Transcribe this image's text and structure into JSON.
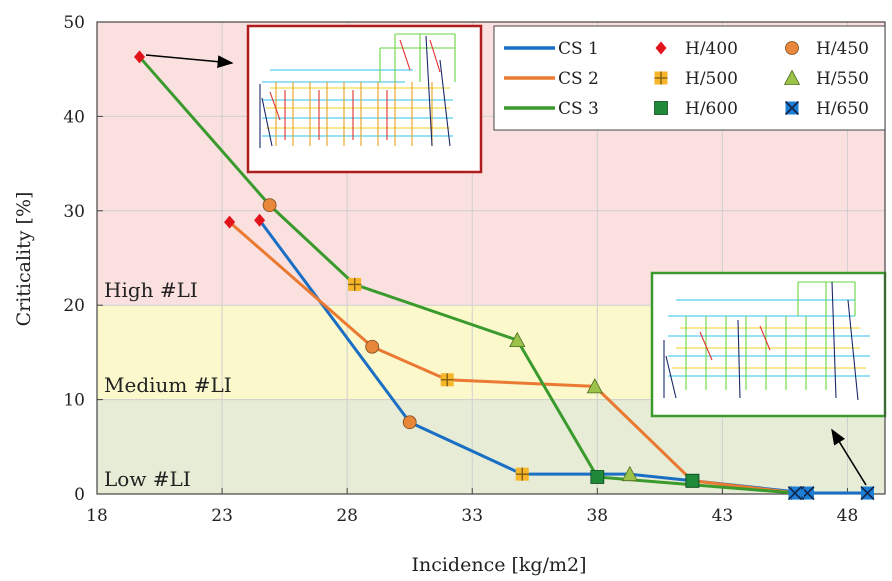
{
  "chart_data": {
    "type": "line",
    "title": "",
    "xlabel": "Incidence [kg/m2]",
    "ylabel": "Criticality [%]",
    "xlim": [
      18,
      49.5
    ],
    "ylim": [
      0,
      50
    ],
    "x_ticks": [
      "18",
      "23",
      "28",
      "33",
      "38",
      "43",
      "48"
    ],
    "y_ticks": [
      "0",
      "10",
      "20",
      "30",
      "40",
      "50"
    ],
    "grid": true,
    "legend_position": "top-right",
    "zones": [
      {
        "label": "Low #LI",
        "from": 0,
        "to": 10,
        "color": "#e6ecd6"
      },
      {
        "label": "Medium #LI",
        "from": 10,
        "to": 20,
        "color": "#fbf8cc"
      },
      {
        "label": "High #LI",
        "from": 20,
        "to": 50,
        "color": "#fbe0e0"
      }
    ],
    "series": [
      {
        "name": "CS 1",
        "color": "#1a6fc4",
        "points": [
          {
            "x": 24.5,
            "y": 29.0,
            "marker": "H/400"
          },
          {
            "x": 30.5,
            "y": 7.6,
            "marker": "H/450"
          },
          {
            "x": 35.0,
            "y": 2.1,
            "marker": "H/500"
          },
          {
            "x": 39.3,
            "y": 2.1,
            "marker": "H/550"
          },
          {
            "x": 41.8,
            "y": 1.4,
            "marker": "H/600"
          },
          {
            "x": 46.4,
            "y": 0.1,
            "marker": "H/650"
          },
          {
            "x": 48.8,
            "y": 0.1,
            "marker": "H/650"
          }
        ]
      },
      {
        "name": "CS 2",
        "color": "#ea7a32",
        "points": [
          {
            "x": 23.3,
            "y": 28.8,
            "marker": "H/400"
          },
          {
            "x": 29.0,
            "y": 15.6,
            "marker": "H/450"
          },
          {
            "x": 32.0,
            "y": 12.1,
            "marker": "H/500"
          },
          {
            "x": 37.9,
            "y": 11.4,
            "marker": "H/550"
          },
          {
            "x": 41.8,
            "y": 1.4,
            "marker": "H/600"
          },
          {
            "x": 46.0,
            "y": 0.1,
            "marker": "H/650"
          }
        ]
      },
      {
        "name": "CS 3",
        "color": "#3a9a2c",
        "points": [
          {
            "x": 19.7,
            "y": 46.3,
            "marker": "H/400"
          },
          {
            "x": 24.9,
            "y": 30.6,
            "marker": "H/450"
          },
          {
            "x": 28.3,
            "y": 22.2,
            "marker": "H/500"
          },
          {
            "x": 34.8,
            "y": 16.3,
            "marker": "H/550"
          },
          {
            "x": 38.0,
            "y": 1.8,
            "marker": "H/600"
          },
          {
            "x": 45.9,
            "y": 0.1,
            "marker": "H/650"
          }
        ]
      }
    ],
    "marker_legend": [
      {
        "label": "H/400",
        "shape": "diamond",
        "color": "#e1141b"
      },
      {
        "label": "H/450",
        "shape": "circle",
        "color": "#e8873a"
      },
      {
        "label": "H/500",
        "shape": "plus-square",
        "color": "#f7b52c"
      },
      {
        "label": "H/550",
        "shape": "triangle",
        "color": "#9cc24a"
      },
      {
        "label": "H/600",
        "shape": "square",
        "color": "#1f8a3a"
      },
      {
        "label": "H/650",
        "shape": "x-square",
        "color": "#1d7fd4"
      }
    ],
    "insets": [
      {
        "name": "structure-high",
        "border_color": "#b01c1c"
      },
      {
        "name": "structure-low",
        "border_color": "#3a9a2c"
      }
    ]
  }
}
